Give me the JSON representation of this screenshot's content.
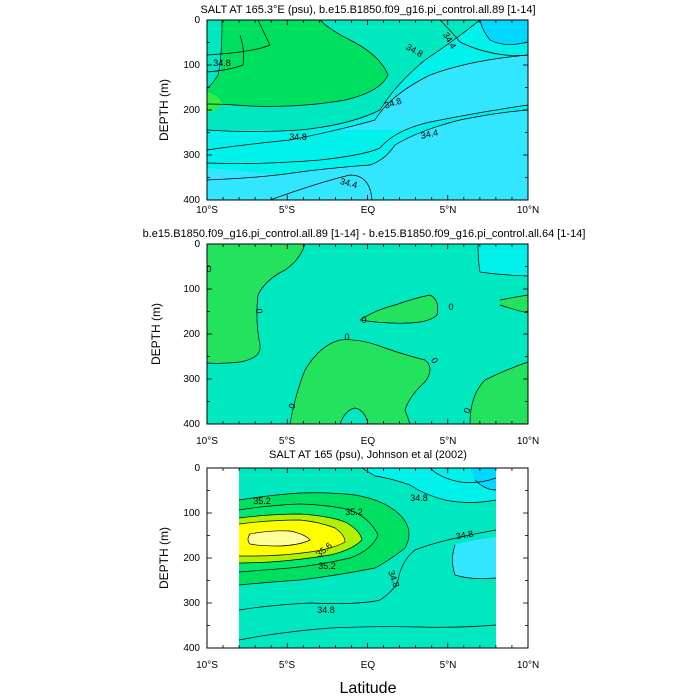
{
  "chart_data": [
    {
      "type": "contour",
      "title": "SALT AT 165.3°E (psu), b.e15.B1850.f09_g16.pi_control.all.89 [1-14]",
      "ylabel": "DEPTH (m)",
      "xlim": [
        -10,
        10
      ],
      "ylim": [
        400,
        0
      ],
      "x_ticks": [
        "10°S",
        "5°S",
        "EQ",
        "5°N",
        "10°N"
      ],
      "y_ticks": [
        "0",
        "100",
        "200",
        "300",
        "400"
      ],
      "contour_labels": [
        "34.8",
        "34.8",
        "34.4",
        "34.8",
        "34.8",
        "34.4",
        "34.4"
      ],
      "fill_colors": {
        "lowest": "#00d8ff",
        "low": "#33e6ff",
        "mid_low": "#00f2ea",
        "mid": "#00e8c0",
        "high": "#00e060",
        "highest": "#33ee44"
      }
    },
    {
      "type": "contour",
      "title": "b.e15.B1850.f09_g16.pi_control.all.89 [1-14] - b.e15.B1850.f09_g16.pi_control.all.64 [1-14]",
      "ylabel": "DEPTH (m)",
      "xlim": [
        -10,
        10
      ],
      "ylim": [
        400,
        0
      ],
      "x_ticks": [
        "10°S",
        "5°S",
        "EQ",
        "5°N",
        "10°N"
      ],
      "y_ticks": [
        "0",
        "100",
        "200",
        "300",
        "400"
      ],
      "contour_labels": [
        "0",
        "0",
        "0",
        "0",
        "0",
        "0",
        "0"
      ],
      "fill_colors": {
        "negative": "#00f2ea",
        "near_zero": "#00e8c0",
        "positive": "#22e25e"
      }
    },
    {
      "type": "contour",
      "title": "SALT AT 165 (psu), Johnson et al (2002)",
      "ylabel": "DEPTH (m)",
      "xlabel": "Latitude",
      "xlim": [
        -10,
        10
      ],
      "ylim": [
        400,
        0
      ],
      "data_xrange": [
        -8,
        8
      ],
      "x_ticks": [
        "10°S",
        "5°S",
        "EQ",
        "5°N",
        "10°N"
      ],
      "y_ticks": [
        "0",
        "100",
        "200",
        "300",
        "400"
      ],
      "contour_labels": [
        "35.2",
        "35.2",
        "34.8",
        "35.6",
        "34.8",
        "35.2",
        "34.8",
        "34.8"
      ],
      "fill_colors": {
        "low": "#00d8ff",
        "mid": "#00e8c0",
        "green": "#22e060",
        "lime": "#b0f000",
        "yellow": "#ffff00",
        "pale_yellow": "#ffff99"
      }
    }
  ]
}
